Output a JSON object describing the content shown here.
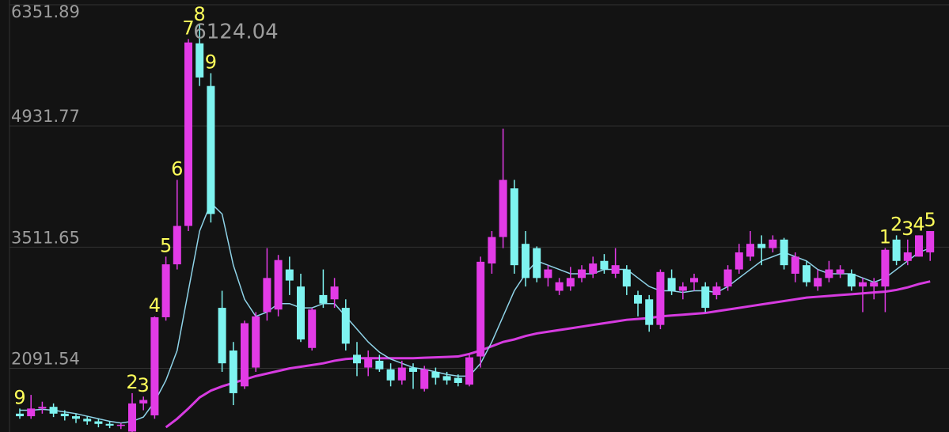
{
  "chart_data": {
    "type": "candlestick",
    "open": [
      1560,
      1530,
      1620,
      1640,
      1560,
      1530,
      1500,
      1470,
      1440,
      1420,
      1350,
      1680,
      1540,
      2690,
      3310,
      3760,
      5900,
      5400,
      2800,
      2300,
      1880,
      2100,
      2750,
      2780,
      3250,
      3050,
      2330,
      2950,
      2900,
      2800,
      2250,
      2100,
      2180,
      2080,
      1950,
      2100,
      1850,
      2050,
      2000,
      1980,
      1900,
      2230,
      3320,
      3630,
      4200,
      3550,
      3500,
      3150,
      3000,
      3050,
      3150,
      3200,
      3350,
      3200,
      3250,
      2950,
      2900,
      2600,
      3150,
      3000,
      3100,
      3050,
      2950,
      3050,
      3250,
      3400,
      3550,
      3500,
      3600,
      3200,
      3300,
      3050,
      3150,
      3200,
      3200,
      3050,
      3050,
      3050,
      3600,
      3350,
      3400,
      3450
    ],
    "high": [
      1620,
      1780,
      1700,
      1680,
      1600,
      1560,
      1530,
      1500,
      1470,
      1450,
      1800,
      1760,
      2700,
      3400,
      4300,
      5950,
      6124.04,
      5550,
      3000,
      2400,
      2650,
      2750,
      3500,
      3420,
      3400,
      3200,
      2800,
      3250,
      3150,
      2900,
      2400,
      2300,
      2250,
      2150,
      2180,
      2150,
      2120,
      2100,
      2050,
      2020,
      2250,
      3400,
      3700,
      4900,
      4300,
      3700,
      3520,
      3300,
      3150,
      3280,
      3300,
      3400,
      3430,
      3500,
      3300,
      3000,
      2950,
      3250,
      3250,
      3100,
      3200,
      3100,
      3100,
      3300,
      3550,
      3700,
      3650,
      3650,
      3620,
      3450,
      3350,
      3250,
      3350,
      3300,
      3250,
      3150,
      3150,
      3500,
      3650,
      3600,
      3650,
      3700
    ],
    "low": [
      1500,
      1500,
      1560,
      1520,
      1480,
      1450,
      1430,
      1400,
      1390,
      1380,
      1330,
      1600,
      1500,
      2650,
      3250,
      3700,
      5400,
      3800,
      2050,
      1660,
      1850,
      2050,
      2650,
      2700,
      2950,
      2400,
      2300,
      2800,
      2800,
      2300,
      2000,
      2000,
      2050,
      1880,
      1900,
      1850,
      1820,
      1900,
      1900,
      1880,
      1880,
      2100,
      3200,
      3500,
      3200,
      3050,
      3100,
      3050,
      2950,
      3000,
      3100,
      3150,
      3200,
      3150,
      2950,
      2700,
      2520,
      2550,
      2950,
      2900,
      3000,
      2750,
      2900,
      3000,
      3200,
      3350,
      3300,
      3450,
      3250,
      3100,
      3050,
      3000,
      3100,
      3150,
      3000,
      2750,
      2900,
      2750,
      3300,
      3300,
      3400,
      3350
    ],
    "close": [
      1530,
      1620,
      1640,
      1560,
      1530,
      1500,
      1470,
      1440,
      1420,
      1430,
      1680,
      1720,
      2690,
      3310,
      3760,
      5910,
      5500,
      3900,
      2150,
      1800,
      2620,
      2700,
      3150,
      3360,
      3120,
      2430,
      2780,
      2850,
      3050,
      2380,
      2150,
      2200,
      2080,
      1950,
      2100,
      2050,
      2080,
      1980,
      1950,
      1920,
      2220,
      3340,
      3630,
      4300,
      3300,
      3150,
      3150,
      3250,
      3100,
      3150,
      3250,
      3320,
      3250,
      3300,
      3050,
      2850,
      2600,
      3220,
      3000,
      3050,
      3150,
      2800,
      3050,
      3250,
      3450,
      3550,
      3500,
      3600,
      3300,
      3400,
      3100,
      3150,
      3250,
      3250,
      3050,
      3100,
      3100,
      3480,
      3350,
      3450,
      3650,
      3700
    ],
    "ma_short": [
      1600,
      1600,
      1610,
      1600,
      1580,
      1560,
      1530,
      1500,
      1470,
      1450,
      1470,
      1520,
      1700,
      1950,
      2300,
      3000,
      3700,
      4030,
      3900,
      3300,
      2900,
      2700,
      2750,
      2850,
      2850,
      2800,
      2800,
      2850,
      2850,
      2700,
      2550,
      2400,
      2280,
      2200,
      2150,
      2100,
      2080,
      2050,
      2020,
      2000,
      2000,
      2150,
      2400,
      2700,
      3000,
      3200,
      3350,
      3300,
      3250,
      3200,
      3200,
      3200,
      3250,
      3250,
      3250,
      3150,
      3050,
      3000,
      3000,
      2980,
      3000,
      3000,
      2980,
      3050,
      3150,
      3250,
      3350,
      3400,
      3450,
      3400,
      3350,
      3250,
      3200,
      3200,
      3200,
      3150,
      3100,
      3150,
      3250,
      3350,
      3450,
      3500
    ],
    "ma_long": [
      null,
      null,
      null,
      null,
      null,
      null,
      null,
      null,
      null,
      null,
      null,
      null,
      null,
      1400,
      1500,
      1620,
      1750,
      1830,
      1880,
      1920,
      1960,
      2000,
      2030,
      2060,
      2090,
      2110,
      2130,
      2150,
      2180,
      2200,
      2210,
      2210,
      2210,
      2210,
      2210,
      2210,
      2215,
      2220,
      2225,
      2230,
      2260,
      2300,
      2350,
      2400,
      2430,
      2470,
      2500,
      2520,
      2540,
      2560,
      2580,
      2600,
      2620,
      2640,
      2660,
      2670,
      2680,
      2700,
      2710,
      2720,
      2730,
      2740,
      2760,
      2780,
      2800,
      2820,
      2840,
      2860,
      2880,
      2900,
      2920,
      2930,
      2940,
      2950,
      2960,
      2970,
      2980,
      2990,
      3010,
      3040,
      3080,
      3110
    ],
    "seq_labels": [
      9,
      null,
      null,
      null,
      null,
      null,
      null,
      null,
      null,
      null,
      2,
      3,
      4,
      5,
      6,
      7,
      8,
      9,
      null,
      null,
      null,
      null,
      null,
      null,
      null,
      null,
      null,
      null,
      null,
      null,
      null,
      null,
      null,
      null,
      null,
      null,
      null,
      null,
      null,
      null,
      null,
      null,
      null,
      null,
      null,
      null,
      null,
      null,
      null,
      null,
      null,
      null,
      null,
      null,
      null,
      null,
      null,
      null,
      null,
      null,
      null,
      null,
      null,
      null,
      null,
      null,
      null,
      null,
      null,
      null,
      null,
      null,
      null,
      null,
      null,
      null,
      null,
      1,
      2,
      3,
      4,
      5
    ],
    "max_label": 6124.04,
    "ylim": [
      1345,
      6380
    ],
    "yticks": [
      2091.54,
      3511.65,
      4931.77,
      6351.89
    ],
    "grid": true,
    "up_color": "#e23be6",
    "down_color": "#7ef3f0",
    "ma_short_color": "#8fd3e8",
    "ma_long_color": "#d63be0"
  }
}
